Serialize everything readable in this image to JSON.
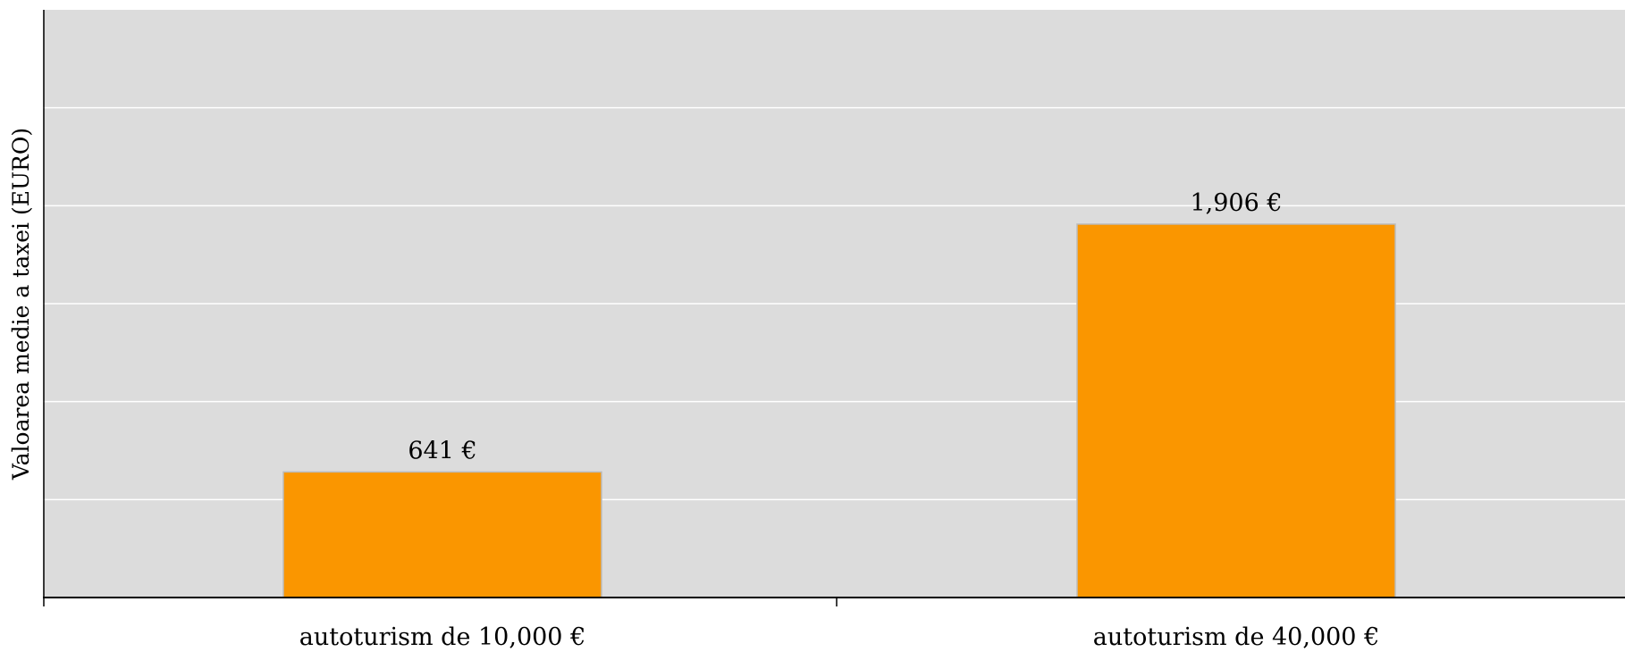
{
  "chart_data": {
    "type": "bar",
    "title": "",
    "xlabel": "",
    "ylabel": "Valoarea medie a taxei (EURO)",
    "categories": [
      "autoturism de 10,000 €",
      "autoturism de 40,000 €"
    ],
    "series": [
      {
        "values": [
          641,
          1906
        ],
        "data_labels": [
          "641 €",
          "1,906 €"
        ],
        "color": "#FA9600"
      }
    ],
    "ylim": [
      0,
      3000
    ],
    "y_gridline_step": 500,
    "y_tick_labels_shown": false,
    "grid": true,
    "legend": "none",
    "colors": {
      "plot_background": "#DCDCDC",
      "gridline": "#FFFFFF",
      "axis": "#000000",
      "bar": "#FA9600",
      "bar_border": "#BBBBBB"
    }
  }
}
